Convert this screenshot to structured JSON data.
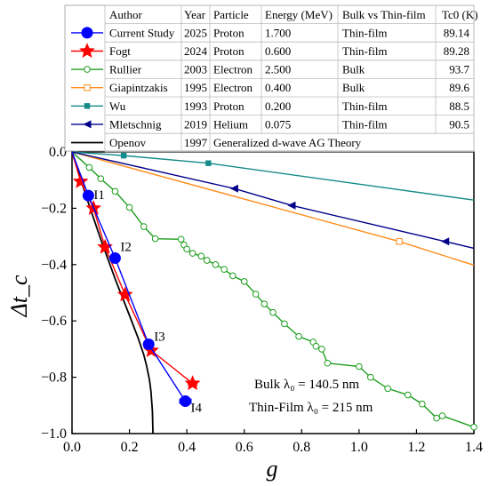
{
  "chart_data": {
    "type": "scatter",
    "xlabel": "g",
    "ylabel": "Δt_c",
    "xlim": [
      0.0,
      1.4
    ],
    "ylim": [
      -1.0,
      0.0
    ],
    "xticks": [
      "0.0",
      "0.2",
      "0.4",
      "0.6",
      "0.8",
      "1.0",
      "1.2",
      "1.4"
    ],
    "yticks": [
      "0.0",
      "−0.2",
      "−0.4",
      "−0.6",
      "−0.8",
      "−1.0"
    ],
    "notes": [
      "Bulk λ₀ = 140.5 nm",
      "Thin-Film λ₀ = 215 nm"
    ],
    "table": {
      "headers": [
        "Author",
        "Year",
        "Particle",
        "Energy (MeV)",
        "Bulk vs Thin-film",
        "Tc0 (K)"
      ],
      "rows": [
        [
          "Current Study",
          "2025",
          "Proton",
          "1.700",
          "Thin-film",
          "89.14"
        ],
        [
          "Fogt",
          "2024",
          "Proton",
          "0.600",
          "Thin-film",
          "89.28"
        ],
        [
          "Rullier",
          "2003",
          "Electron",
          "2.500",
          "Bulk",
          "93.7"
        ],
        [
          "Giapintzakis",
          "1995",
          "Electron",
          "0.400",
          "Bulk",
          "89.6"
        ],
        [
          "Wu",
          "1993",
          "Proton",
          "0.200",
          "Thin-film",
          "88.5"
        ],
        [
          "Mletschnig",
          "2019",
          "Helium",
          "0.075",
          "Thin-film",
          "90.5"
        ]
      ],
      "openov_row": [
        "Openov",
        "1997",
        "Generalized d-wave AG Theory"
      ]
    },
    "series": [
      {
        "name": "Current Study",
        "color": "#0000ff",
        "marker": "circle",
        "labels": [
          "I1",
          "I2",
          "I3",
          "I4"
        ],
        "x": [
          0.0,
          0.057,
          0.15,
          0.267,
          0.395
        ],
        "y": [
          0.0,
          -0.155,
          -0.377,
          -0.683,
          -0.885
        ],
        "xerr": [
          0,
          0.005,
          0.008,
          0.012,
          0.02
        ],
        "show_marker": [
          false,
          true,
          true,
          true,
          true
        ]
      },
      {
        "name": "Fogt",
        "color": "#ff0000",
        "marker": "star",
        "x": [
          0.0,
          0.03,
          0.075,
          0.115,
          0.185,
          0.276,
          0.42
        ],
        "y": [
          0.0,
          -0.105,
          -0.2,
          -0.338,
          -0.507,
          -0.705,
          -0.822
        ],
        "xerr": [
          0,
          0,
          0,
          0,
          0,
          0,
          0.015
        ],
        "show_marker": [
          false,
          true,
          true,
          true,
          true,
          true,
          true
        ]
      },
      {
        "name": "Rullier",
        "color": "#1e9e1e",
        "marker": "open-circle",
        "x": [
          0.0,
          0.06,
          0.1,
          0.15,
          0.2,
          0.25,
          0.29,
          0.38,
          0.39,
          0.4,
          0.42,
          0.45,
          0.47,
          0.5,
          0.53,
          0.56,
          0.6,
          0.64,
          0.67,
          0.7,
          0.74,
          0.79,
          0.84,
          0.85,
          0.87,
          0.89,
          1.0,
          1.04,
          1.1,
          1.17,
          1.22,
          1.27,
          1.29,
          1.4
        ],
        "y": [
          0.0,
          -0.055,
          -0.095,
          -0.14,
          -0.197,
          -0.265,
          -0.308,
          -0.31,
          -0.33,
          -0.345,
          -0.36,
          -0.37,
          -0.385,
          -0.4,
          -0.417,
          -0.44,
          -0.46,
          -0.505,
          -0.54,
          -0.57,
          -0.61,
          -0.655,
          -0.675,
          -0.69,
          -0.7,
          -0.75,
          -0.762,
          -0.8,
          -0.84,
          -0.863,
          -0.895,
          -0.945,
          -0.937,
          -0.977
        ],
        "show_marker": [
          false,
          true,
          true,
          true,
          true,
          true,
          true,
          true,
          true,
          true,
          true,
          true,
          true,
          true,
          true,
          true,
          true,
          true,
          true,
          true,
          true,
          true,
          true,
          true,
          true,
          true,
          true,
          true,
          true,
          true,
          true,
          true,
          true,
          true
        ]
      },
      {
        "name": "Giapintzakis",
        "color": "#ff8c1a",
        "marker": "open-square",
        "x": [
          0.0,
          1.14,
          1.4
        ],
        "y": [
          0.0,
          -0.318,
          -0.402
        ],
        "show_marker": [
          false,
          true,
          false
        ]
      },
      {
        "name": "Wu",
        "color": "#158a8a",
        "marker": "square",
        "x": [
          0.0,
          0.18,
          0.475,
          1.4
        ],
        "y": [
          0.0,
          -0.013,
          -0.04,
          -0.171
        ],
        "show_marker": [
          false,
          true,
          true,
          false
        ]
      },
      {
        "name": "Mletschnig",
        "color": "#00008b",
        "marker": "triangle-left",
        "x": [
          0.0,
          0.565,
          0.765,
          1.3,
          1.4
        ],
        "y": [
          0.0,
          -0.13,
          -0.19,
          -0.318,
          -0.342
        ],
        "show_marker": [
          false,
          true,
          true,
          true,
          false
        ]
      },
      {
        "name": "Openov",
        "color": "#000000",
        "marker": "none",
        "x": [
          0.0,
          0.05,
          0.1,
          0.15,
          0.2,
          0.23,
          0.25,
          0.26,
          0.27,
          0.275,
          0.28,
          0.282
        ],
        "y": [
          0.0,
          -0.16,
          -0.31,
          -0.45,
          -0.58,
          -0.66,
          -0.72,
          -0.76,
          -0.81,
          -0.85,
          -0.92,
          -1.0
        ]
      }
    ]
  }
}
